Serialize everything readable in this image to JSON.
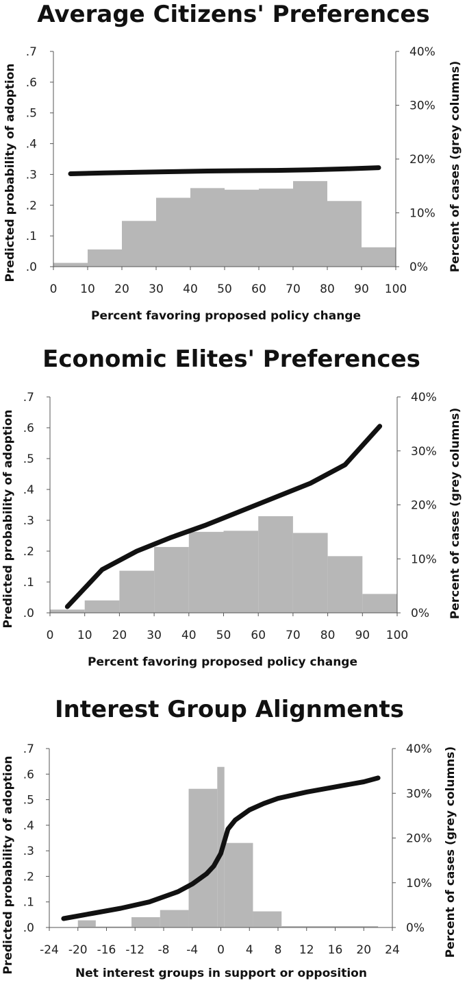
{
  "chart_data": [
    {
      "type": "bar",
      "title": "Average Citizens' Preferences",
      "xlabel": "Percent favoring proposed policy change",
      "ylabel": "Predicted probability of adoption",
      "y2label": "Percent of cases (grey columns)",
      "xlim": [
        0,
        100
      ],
      "ylim": [
        0,
        0.7
      ],
      "y2lim": [
        0,
        40
      ],
      "xticks": [
        "0",
        "10",
        "20",
        "30",
        "40",
        "50",
        "60",
        "70",
        "80",
        "90",
        "100"
      ],
      "yticks": [
        ".0",
        ".1",
        ".2",
        ".3",
        ".4",
        ".5",
        ".6",
        ".7"
      ],
      "y2ticks": [
        "0%",
        "10%",
        "20%",
        "30%",
        "40%"
      ],
      "bars": {
        "name": "Percent of cases",
        "bin_starts": [
          0,
          10,
          20,
          30,
          40,
          50,
          60,
          70,
          80,
          90
        ],
        "bin_width": 10,
        "values": [
          0.7,
          3.2,
          8.5,
          12.8,
          14.6,
          14.3,
          14.5,
          15.9,
          12.2,
          3.6
        ]
      },
      "line": {
        "name": "Predicted probability",
        "x": [
          5,
          15,
          25,
          35,
          45,
          55,
          65,
          75,
          85,
          95
        ],
        "y": [
          0.302,
          0.305,
          0.307,
          0.309,
          0.311,
          0.312,
          0.313,
          0.315,
          0.318,
          0.322
        ]
      }
    },
    {
      "type": "bar",
      "title": "Economic Elites' Preferences",
      "xlabel": "Percent favoring proposed policy change",
      "ylabel": "Predicted probability of adoption",
      "y2label": "Percent of cases (grey columns)",
      "xlim": [
        0,
        100
      ],
      "ylim": [
        0,
        0.7
      ],
      "y2lim": [
        0,
        40
      ],
      "xticks": [
        "0",
        "10",
        "20",
        "30",
        "40",
        "50",
        "60",
        "70",
        "80",
        "90",
        "100"
      ],
      "yticks": [
        ".0",
        ".1",
        ".2",
        ".3",
        ".4",
        ".5",
        ".6",
        ".7"
      ],
      "y2ticks": [
        "0%",
        "10%",
        "20%",
        "30%",
        "40%"
      ],
      "bars": {
        "name": "Percent of cases",
        "bin_starts": [
          0,
          10,
          20,
          30,
          40,
          50,
          60,
          70,
          80,
          90
        ],
        "bin_width": 10,
        "values": [
          0.6,
          2.3,
          7.8,
          12.2,
          15.0,
          15.2,
          17.9,
          14.8,
          10.5,
          3.5
        ]
      },
      "line": {
        "name": "Predicted probability",
        "x": [
          5,
          15,
          25,
          35,
          45,
          55,
          65,
          75,
          85,
          95
        ],
        "y": [
          0.02,
          0.14,
          0.2,
          0.245,
          0.285,
          0.33,
          0.375,
          0.42,
          0.48,
          0.605
        ]
      }
    },
    {
      "type": "bar",
      "title": "Interest Group Alignments",
      "xlabel": "Net interest groups in support or opposition",
      "ylabel": "Predicted probability of adoption",
      "y2label": "Percent of cases (grey columns)",
      "xlim": [
        -24,
        24
      ],
      "ylim": [
        0,
        0.7
      ],
      "y2lim": [
        0,
        40
      ],
      "xticks": [
        "-24",
        "-20",
        "-16",
        "-12",
        "-8",
        "-4",
        "0",
        "4",
        "8",
        "12",
        "16",
        "20",
        "24"
      ],
      "yticks": [
        ".0",
        ".1",
        ".2",
        ".3",
        ".4",
        ".5",
        ".6",
        ".7"
      ],
      "y2ticks": [
        "0%",
        "10%",
        "20%",
        "30%",
        "40%"
      ],
      "bars": {
        "name": "Percent of cases",
        "bins": [
          [
            -20,
            -17.5,
            1.6
          ],
          [
            -17.5,
            -12.5,
            0.2
          ],
          [
            -12.5,
            -8.5,
            2.3
          ],
          [
            -8.5,
            -4.5,
            3.9
          ],
          [
            -4.5,
            -0.5,
            31.0
          ],
          [
            -0.5,
            0.5,
            35.9
          ],
          [
            0.5,
            4.5,
            18.9
          ],
          [
            4.5,
            8.5,
            3.6
          ],
          [
            8.5,
            22,
            0.3
          ]
        ]
      },
      "line": {
        "name": "Predicted probability",
        "x": [
          -22,
          -18,
          -14,
          -10,
          -6,
          -4,
          -2,
          -1,
          0,
          1,
          2,
          4,
          6,
          8,
          12,
          16,
          20,
          22
        ],
        "y": [
          0.035,
          0.055,
          0.075,
          0.1,
          0.14,
          0.17,
          0.21,
          0.24,
          0.29,
          0.385,
          0.42,
          0.46,
          0.485,
          0.505,
          0.53,
          0.55,
          0.57,
          0.585
        ]
      }
    }
  ]
}
